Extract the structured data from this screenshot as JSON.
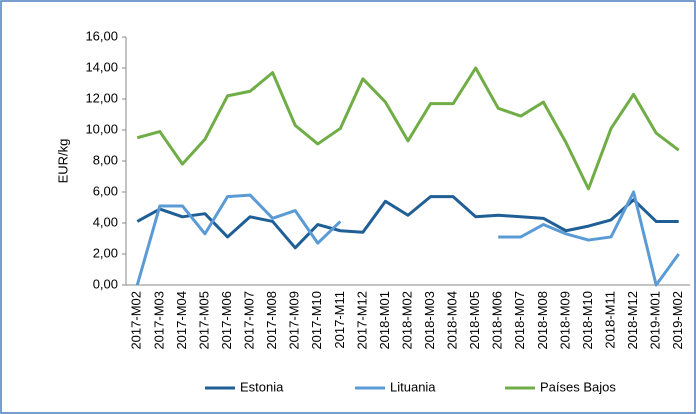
{
  "chart_data": {
    "type": "line",
    "y_label": "EUR/kg",
    "categories": [
      "2017-M02",
      "2017-M03",
      "2017-M04",
      "2017-M05",
      "2017-M06",
      "2017-M07",
      "2017-M08",
      "2017-M09",
      "2017-M10",
      "2017-M11",
      "2017-M12",
      "2018-M01",
      "2018-M02",
      "2018-M03",
      "2018-M04",
      "2018-M05",
      "2018-M06",
      "2018-M07",
      "2018-M08",
      "2018-M09",
      "2018-M10",
      "2018-M11",
      "2018-M12",
      "2019-M01",
      "2019-M02"
    ],
    "series": [
      {
        "name": "Estonia",
        "color": "#1f5f96",
        "values": [
          4.1,
          4.9,
          4.4,
          4.6,
          3.1,
          4.4,
          4.1,
          2.4,
          3.9,
          3.5,
          3.4,
          5.4,
          4.5,
          5.7,
          5.7,
          4.4,
          4.5,
          4.4,
          4.3,
          3.5,
          3.8,
          4.2,
          5.5,
          4.1,
          4.1
        ]
      },
      {
        "name": "Lituania",
        "color": "#5b9bd5",
        "values": [
          0.0,
          5.1,
          5.1,
          3.3,
          5.7,
          5.8,
          4.3,
          4.8,
          2.7,
          4.1,
          null,
          null,
          null,
          null,
          null,
          null,
          3.1,
          3.1,
          3.9,
          3.3,
          2.9,
          3.1,
          6.0,
          0.0,
          2.0
        ]
      },
      {
        "name": "Países Bajos",
        "color": "#70ad47",
        "values": [
          9.5,
          9.9,
          7.8,
          9.4,
          12.2,
          12.5,
          13.7,
          10.3,
          9.1,
          10.1,
          13.3,
          11.8,
          9.3,
          11.7,
          11.7,
          14.0,
          11.4,
          10.9,
          11.8,
          9.2,
          6.2,
          10.1,
          12.3,
          9.8,
          8.7
        ]
      }
    ],
    "ylim": [
      0,
      16
    ],
    "yticks": [
      {
        "value": 0,
        "label": "0,00"
      },
      {
        "value": 2,
        "label": "2,00"
      },
      {
        "value": 4,
        "label": "4,00"
      },
      {
        "value": 6,
        "label": "6,00"
      },
      {
        "value": 8,
        "label": "8,00"
      },
      {
        "value": 10,
        "label": "10,00"
      },
      {
        "value": 12,
        "label": "12,00"
      },
      {
        "value": 14,
        "label": "14,00"
      },
      {
        "value": 16,
        "label": "16,00"
      }
    ],
    "legend": "bottom"
  }
}
